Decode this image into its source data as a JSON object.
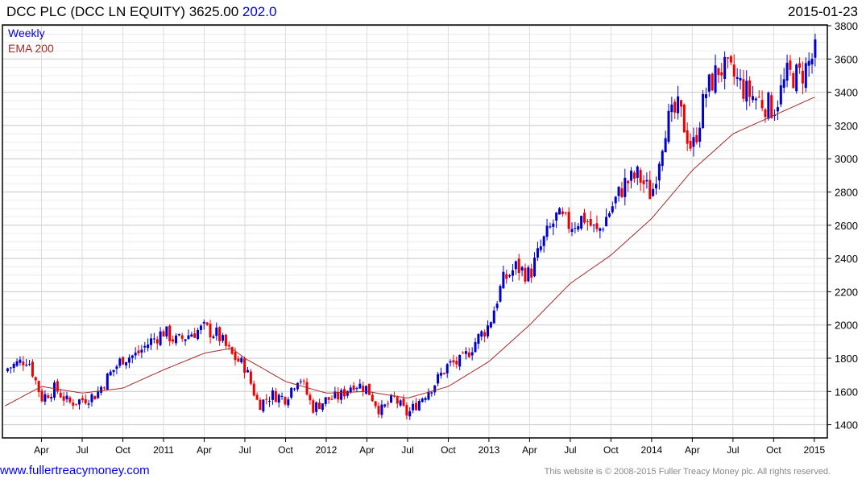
{
  "header": {
    "name": "DCC PLC (DCC LN EQUITY)",
    "price": "3625.00",
    "change": "202.0",
    "date": "2015-01-23"
  },
  "legend": {
    "period": "Weekly",
    "ema": "EMA 200"
  },
  "footer": {
    "site": "www.fullertreacymoney.com",
    "copyright": "This website is © 2008-2015 Fuller Treacy Money plc. All rights reserved."
  },
  "colors": {
    "up": "#0000cc",
    "down": "#ee0000",
    "ema": "#a52a2a",
    "grid": "#d8d8d8"
  },
  "chart_data": {
    "type": "candlestick",
    "ylim": [
      1400,
      3800
    ],
    "yticks": [
      1400,
      1600,
      1800,
      2000,
      2200,
      2400,
      2600,
      2800,
      3000,
      3200,
      3400,
      3600,
      3800
    ],
    "xticks": [
      {
        "label": "Apr",
        "m": 3
      },
      {
        "label": "Jul",
        "m": 6
      },
      {
        "label": "Oct",
        "m": 9
      },
      {
        "label": "2011",
        "m": 12
      },
      {
        "label": "Apr",
        "m": 15
      },
      {
        "label": "Jul",
        "m": 18
      },
      {
        "label": "Oct",
        "m": 21
      },
      {
        "label": "2012",
        "m": 24
      },
      {
        "label": "Apr",
        "m": 27
      },
      {
        "label": "Jul",
        "m": 30
      },
      {
        "label": "Oct",
        "m": 33
      },
      {
        "label": "2013",
        "m": 36
      },
      {
        "label": "Apr",
        "m": 39
      },
      {
        "label": "Jul",
        "m": 42
      },
      {
        "label": "Oct",
        "m": 45
      },
      {
        "label": "2014",
        "m": 48
      },
      {
        "label": "Apr",
        "m": 51
      },
      {
        "label": "Jul",
        "m": 54
      },
      {
        "label": "Oct",
        "m": 57
      },
      {
        "label": "2015",
        "m": 60
      }
    ],
    "monthly_close_approx": [
      1720,
      1760,
      1800,
      1560,
      1620,
      1530,
      1550,
      1580,
      1700,
      1800,
      1820,
      1900,
      1960,
      1900,
      1950,
      1980,
      1940,
      1820,
      1750,
      1520,
      1580,
      1560,
      1700,
      1500,
      1550,
      1570,
      1650,
      1620,
      1480,
      1560,
      1460,
      1560,
      1650,
      1760,
      1780,
      1900,
      2000,
      2260,
      2350,
      2300,
      2500,
      2650,
      2600,
      2650,
      2550,
      2700,
      2850,
      2900,
      2780,
      3200,
      3300,
      3050,
      3400,
      3550,
      3500,
      3400,
      3350,
      3300,
      3500,
      3500,
      3625
    ],
    "ema200_approx": [
      [
        0,
        1500
      ],
      [
        3,
        1630
      ],
      [
        6,
        1590
      ],
      [
        9,
        1620
      ],
      [
        12,
        1730
      ],
      [
        15,
        1830
      ],
      [
        17,
        1860
      ],
      [
        18,
        1800
      ],
      [
        21,
        1660
      ],
      [
        24,
        1590
      ],
      [
        27,
        1600
      ],
      [
        30,
        1560
      ],
      [
        33,
        1630
      ],
      [
        36,
        1780
      ],
      [
        39,
        2000
      ],
      [
        42,
        2250
      ],
      [
        45,
        2420
      ],
      [
        48,
        2640
      ],
      [
        51,
        2930
      ],
      [
        54,
        3150
      ],
      [
        57,
        3260
      ],
      [
        60,
        3370
      ]
    ]
  }
}
